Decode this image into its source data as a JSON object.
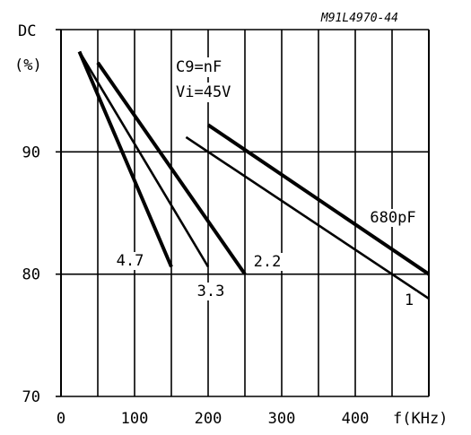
{
  "chart_data": {
    "type": "line",
    "reference_id": "M91L4970-44",
    "ylabel": "DC",
    "ylabel_unit": "(%)",
    "xlabel": "f(KHz)",
    "annotation_lines": [
      "C9=nF",
      "Vi=45V"
    ],
    "xlim": [
      0,
      500
    ],
    "ylim": [
      70,
      100
    ],
    "x_ticks": [
      "0",
      "100",
      "200",
      "300",
      "400"
    ],
    "y_ticks": [
      "70",
      "80",
      "90"
    ],
    "grid": true,
    "series": [
      {
        "name": "4.7",
        "bold": true,
        "x": [
          25,
          150
        ],
        "y": [
          98.2,
          80.6
        ]
      },
      {
        "name": "3.3",
        "bold": false,
        "x": [
          25,
          200
        ],
        "y": [
          98.2,
          80.6
        ]
      },
      {
        "name": "2.2",
        "bold": true,
        "x": [
          50,
          250
        ],
        "y": [
          97.3,
          80.0
        ]
      },
      {
        "name": "1",
        "bold": false,
        "x": [
          170,
          500
        ],
        "y": [
          91.2,
          78.0
        ]
      },
      {
        "name": "680pF",
        "bold": true,
        "x": [
          200,
          500
        ],
        "y": [
          92.2,
          80.0
        ]
      }
    ]
  }
}
